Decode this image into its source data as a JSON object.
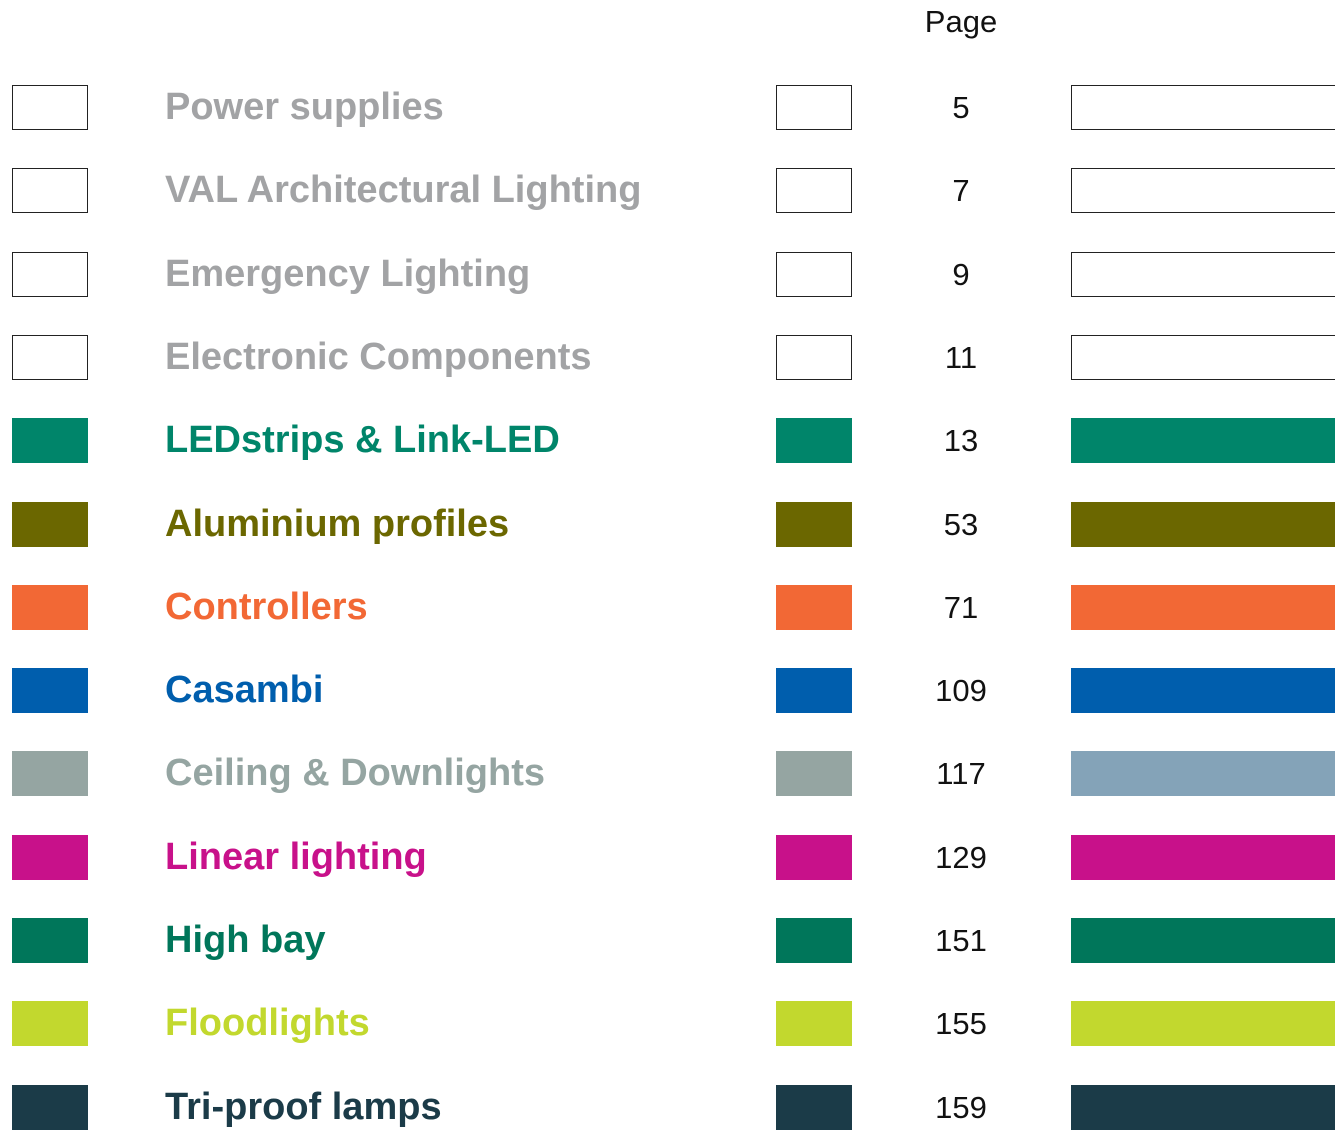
{
  "header": "Page",
  "rows": [
    {
      "label": "Power supplies",
      "page": 5,
      "color": "#ffffff",
      "bar_color": "#ffffff",
      "text_color": "#a2a3a5",
      "outlined": true
    },
    {
      "label": "VAL Architectural Lighting",
      "page": 7,
      "color": "#ffffff",
      "bar_color": "#ffffff",
      "text_color": "#a2a3a5",
      "outlined": true
    },
    {
      "label": "Emergency Lighting",
      "page": 9,
      "color": "#ffffff",
      "bar_color": "#ffffff",
      "text_color": "#a2a3a5",
      "outlined": true
    },
    {
      "label": "Electronic Components",
      "page": 11,
      "color": "#ffffff",
      "bar_color": "#ffffff",
      "text_color": "#a2a3a5",
      "outlined": true
    },
    {
      "label": "LEDstrips & Link-LED",
      "page": 13,
      "color": "#00856a",
      "bar_color": "#00856a",
      "text_color": "#00856a",
      "outlined": false
    },
    {
      "label": "Aluminium profiles",
      "page": 53,
      "color": "#6b6700",
      "bar_color": "#6b6700",
      "text_color": "#6b6700",
      "outlined": false
    },
    {
      "label": "Controllers",
      "page": 71,
      "color": "#f26835",
      "bar_color": "#f26835",
      "text_color": "#f26835",
      "outlined": false
    },
    {
      "label": "Casambi",
      "page": 109,
      "color": "#005ead",
      "bar_color": "#005ead",
      "text_color": "#005ead",
      "outlined": false
    },
    {
      "label": "Ceiling & Downlights",
      "page": 117,
      "color": "#95a5a2",
      "bar_color": "#84a3b8",
      "text_color": "#95a5a2",
      "outlined": false
    },
    {
      "label": "Linear lighting",
      "page": 129,
      "color": "#c8118a",
      "bar_color": "#c8118a",
      "text_color": "#c8118a",
      "outlined": false
    },
    {
      "label": "High bay",
      "page": 151,
      "color": "#00765a",
      "bar_color": "#00765a",
      "text_color": "#00765a",
      "outlined": false
    },
    {
      "label": "Floodlights",
      "page": 155,
      "color": "#c2d82e",
      "bar_color": "#c2d82e",
      "text_color": "#c2d82e",
      "outlined": false
    },
    {
      "label": "Tri-proof lamps",
      "page": 159,
      "color": "#1b3b48",
      "bar_color": "#1b3b48",
      "text_color": "#1b3b48",
      "outlined": false
    }
  ]
}
